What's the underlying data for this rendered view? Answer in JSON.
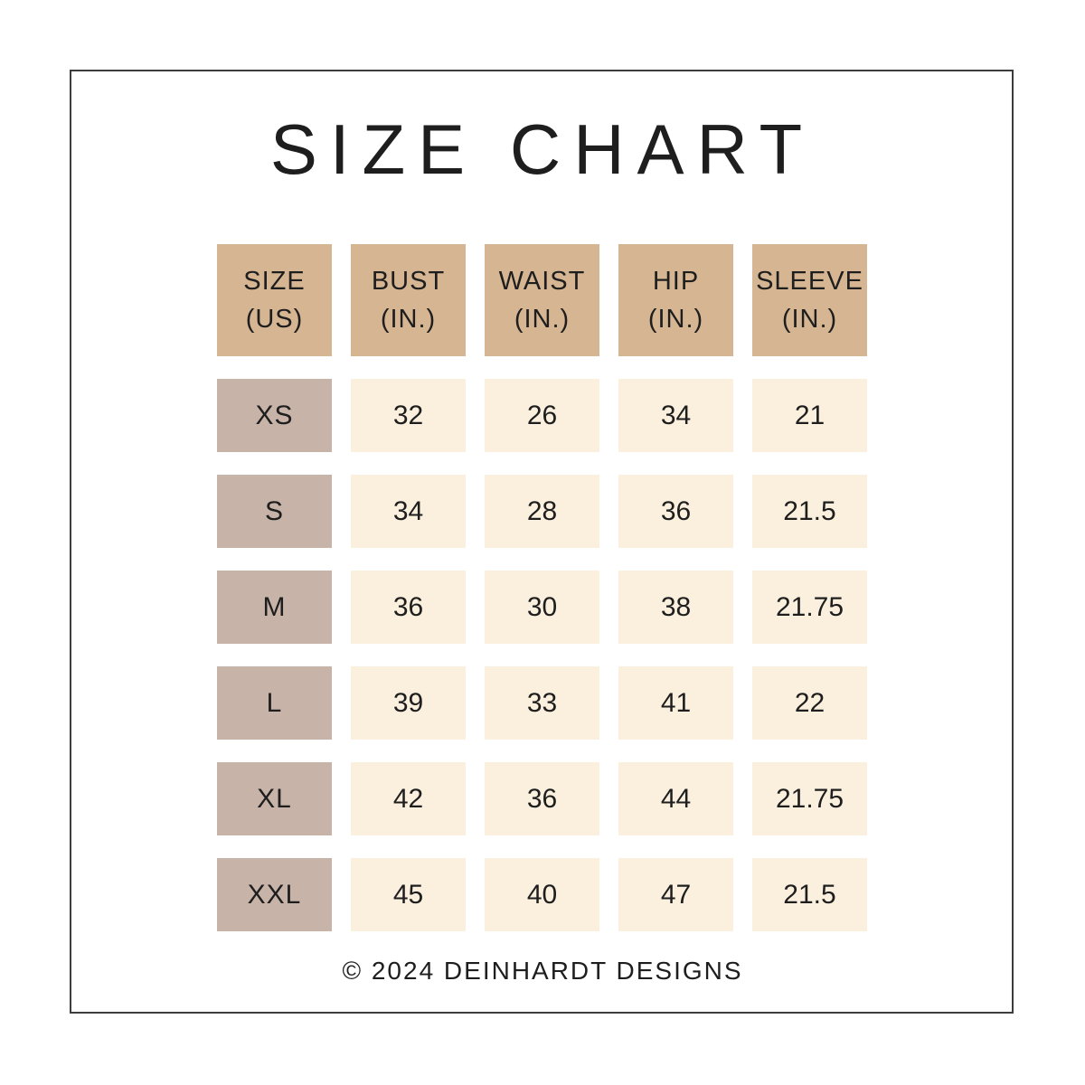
{
  "page": {
    "title": "SIZE CHART",
    "footer": "© 2024 DEINHARDT DESIGNS"
  },
  "colors": {
    "header_bg": "#d6b592",
    "size_bg": "#c7b3a7",
    "cell_bg": "#fbf0de",
    "text": "#1e1e1e",
    "border": "#3d3d3d",
    "background": "#ffffff"
  },
  "chart_data": {
    "type": "table",
    "title": "SIZE CHART",
    "columns": [
      {
        "label": "SIZE",
        "unit": "(US)"
      },
      {
        "label": "BUST",
        "unit": "(IN.)"
      },
      {
        "label": "WAIST",
        "unit": "(IN.)"
      },
      {
        "label": "HIP",
        "unit": "(IN.)"
      },
      {
        "label": "SLEEVE",
        "unit": "(IN.)"
      }
    ],
    "rows": [
      {
        "size": "XS",
        "values": [
          "32",
          "26",
          "34",
          "21"
        ]
      },
      {
        "size": "S",
        "values": [
          "34",
          "28",
          "36",
          "21.5"
        ]
      },
      {
        "size": "M",
        "values": [
          "36",
          "30",
          "38",
          "21.75"
        ]
      },
      {
        "size": "L",
        "values": [
          "39",
          "33",
          "41",
          "22"
        ]
      },
      {
        "size": "XL",
        "values": [
          "42",
          "36",
          "44",
          "21.75"
        ]
      },
      {
        "size": "XXL",
        "values": [
          "45",
          "40",
          "47",
          "21.5"
        ]
      }
    ]
  }
}
